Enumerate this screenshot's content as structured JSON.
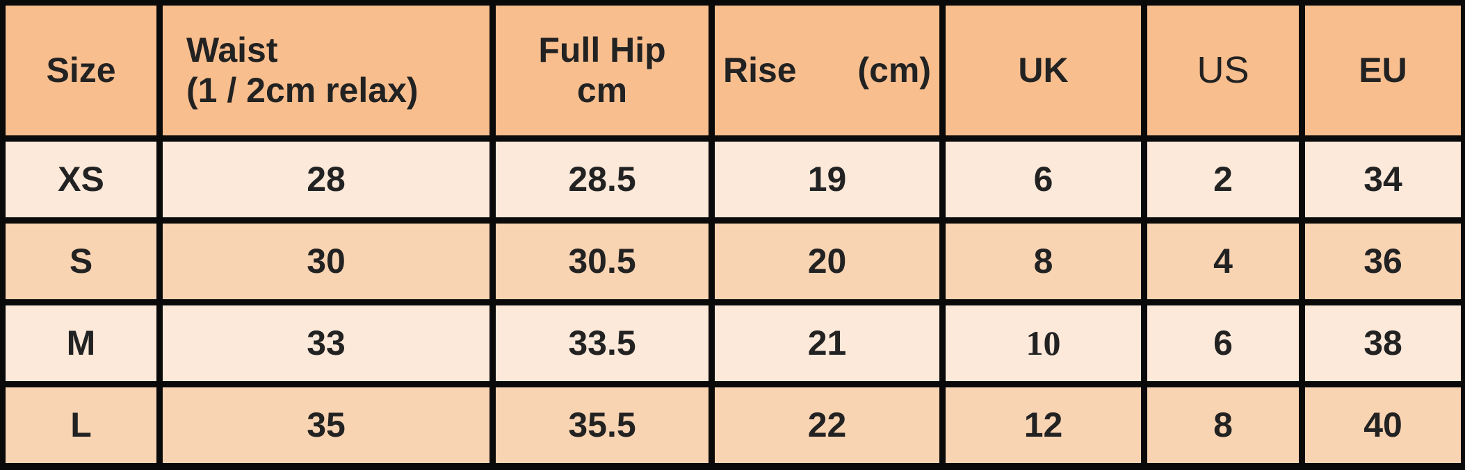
{
  "table": {
    "headers": {
      "size": "Size",
      "waist_line1": "Waist",
      "waist_line2": "(1 / 2cm relax)",
      "hip_line1": "Full Hip",
      "hip_line2": "cm",
      "rise": "Rise",
      "rise_unit": "(cm)",
      "uk": "UK",
      "us": "US",
      "eu": "EU"
    },
    "rows": [
      [
        "XS",
        "28",
        "28.5",
        "19",
        "6",
        "2",
        "34"
      ],
      [
        "S",
        "30",
        "30.5",
        "20",
        "8",
        "4",
        "36"
      ],
      [
        "M",
        "33",
        "33.5",
        "21",
        "10",
        "6",
        "38"
      ],
      [
        "L",
        "35",
        "35.5",
        "22",
        "12",
        "8",
        "40"
      ]
    ],
    "colors": {
      "header": "#F8BE8E",
      "row_light": "#FCE9DA",
      "row_medium": "#F9D4B3",
      "border": "#0a0a0a"
    }
  }
}
